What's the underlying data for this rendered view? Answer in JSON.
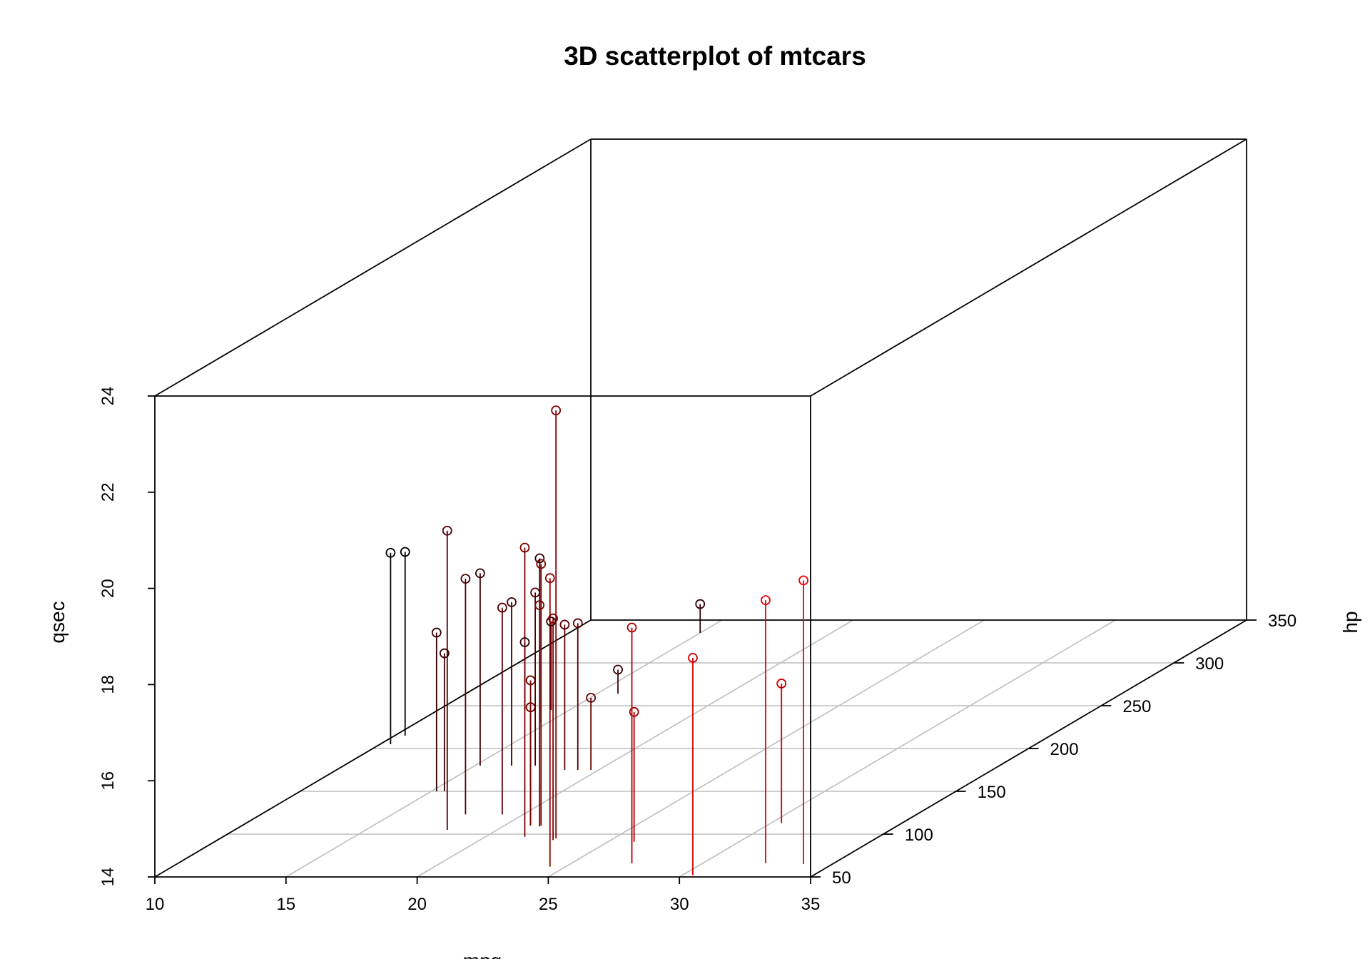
{
  "chart_data": {
    "type": "scatter",
    "subtype": "3d-scatter-with-drop-lines",
    "title": "3D scatterplot of mtcars",
    "xlabel": "mpg",
    "ylabel": "hp",
    "zlabel": "qsec",
    "xlim": [
      10,
      35
    ],
    "ylim": [
      50,
      350
    ],
    "zlim": [
      14,
      24
    ],
    "x_ticks": [
      "10",
      "15",
      "20",
      "25",
      "30",
      "35"
    ],
    "y_ticks": [
      "50",
      "100",
      "150",
      "200",
      "250",
      "300",
      "350"
    ],
    "z_ticks": [
      "14",
      "16",
      "18",
      "20",
      "22",
      "24"
    ],
    "grid": true,
    "point_shape": "open-circle",
    "color_scale": [
      "#000000",
      "#ff0000"
    ],
    "points": [
      {
        "mpg": 21.0,
        "hp": 110,
        "qsec": 16.46
      },
      {
        "mpg": 21.0,
        "hp": 110,
        "qsec": 17.02
      },
      {
        "mpg": 22.8,
        "hp": 93,
        "qsec": 18.61
      },
      {
        "mpg": 21.4,
        "hp": 110,
        "qsec": 19.44
      },
      {
        "mpg": 18.7,
        "hp": 175,
        "qsec": 17.02
      },
      {
        "mpg": 18.1,
        "hp": 105,
        "qsec": 20.22
      },
      {
        "mpg": 14.3,
        "hp": 245,
        "qsec": 15.84
      },
      {
        "mpg": 24.4,
        "hp": 62,
        "qsec": 20.0
      },
      {
        "mpg": 22.8,
        "hp": 95,
        "qsec": 22.9
      },
      {
        "mpg": 19.2,
        "hp": 123,
        "qsec": 18.3
      },
      {
        "mpg": 17.8,
        "hp": 123,
        "qsec": 18.9
      },
      {
        "mpg": 16.4,
        "hp": 180,
        "qsec": 17.4
      },
      {
        "mpg": 17.3,
        "hp": 180,
        "qsec": 17.6
      },
      {
        "mpg": 15.2,
        "hp": 180,
        "qsec": 18.0
      },
      {
        "mpg": 10.4,
        "hp": 205,
        "qsec": 17.98
      },
      {
        "mpg": 10.4,
        "hp": 215,
        "qsec": 17.82
      },
      {
        "mpg": 14.7,
        "hp": 230,
        "qsec": 17.42
      },
      {
        "mpg": 32.4,
        "hp": 66,
        "qsec": 19.47
      },
      {
        "mpg": 30.4,
        "hp": 52,
        "qsec": 18.52
      },
      {
        "mpg": 33.9,
        "hp": 65,
        "qsec": 19.9
      },
      {
        "mpg": 21.5,
        "hp": 97,
        "qsec": 20.01
      },
      {
        "mpg": 15.5,
        "hp": 150,
        "qsec": 16.87
      },
      {
        "mpg": 15.2,
        "hp": 150,
        "qsec": 17.3
      },
      {
        "mpg": 13.3,
        "hp": 245,
        "qsec": 15.41
      },
      {
        "mpg": 19.2,
        "hp": 175,
        "qsec": 17.05
      },
      {
        "mpg": 27.3,
        "hp": 66,
        "qsec": 18.9
      },
      {
        "mpg": 26.0,
        "hp": 91,
        "qsec": 16.7
      },
      {
        "mpg": 30.4,
        "hp": 113,
        "qsec": 16.9
      },
      {
        "mpg": 15.8,
        "hp": 264,
        "qsec": 14.5
      },
      {
        "mpg": 19.7,
        "hp": 175,
        "qsec": 15.5
      },
      {
        "mpg": 15.0,
        "hp": 335,
        "qsec": 14.6
      },
      {
        "mpg": 21.4,
        "hp": 109,
        "qsec": 18.6
      }
    ]
  }
}
